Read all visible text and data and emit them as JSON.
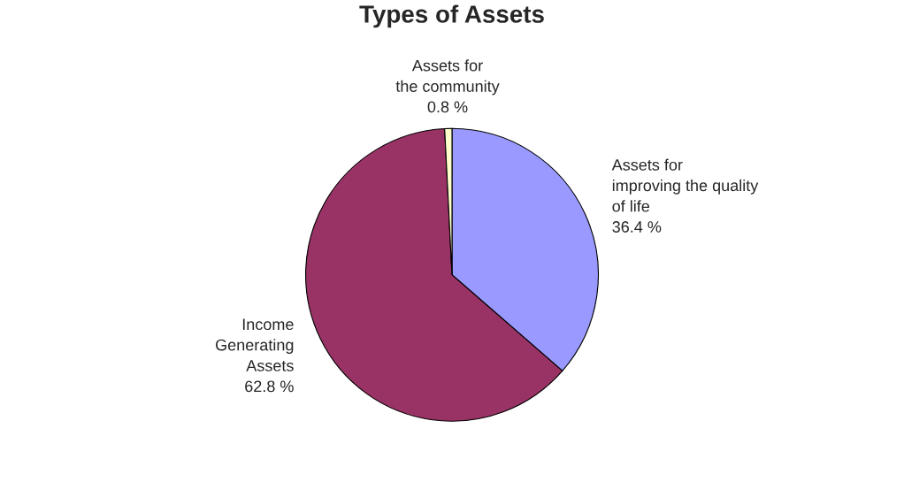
{
  "chart_data": {
    "type": "pie",
    "title": "Types of Assets",
    "categories": [
      "Assets for\nimproving the quality\nof life",
      "Income\nGenerating\nAssets",
      "Assets for\nthe community"
    ],
    "values": [
      36.4,
      62.8,
      0.8
    ],
    "colors": [
      "#9999ff",
      "#993366",
      "#ffffcc"
    ],
    "value_labels": [
      "36.4 %",
      "62.8 %",
      "0.8 %"
    ],
    "legend": false
  }
}
